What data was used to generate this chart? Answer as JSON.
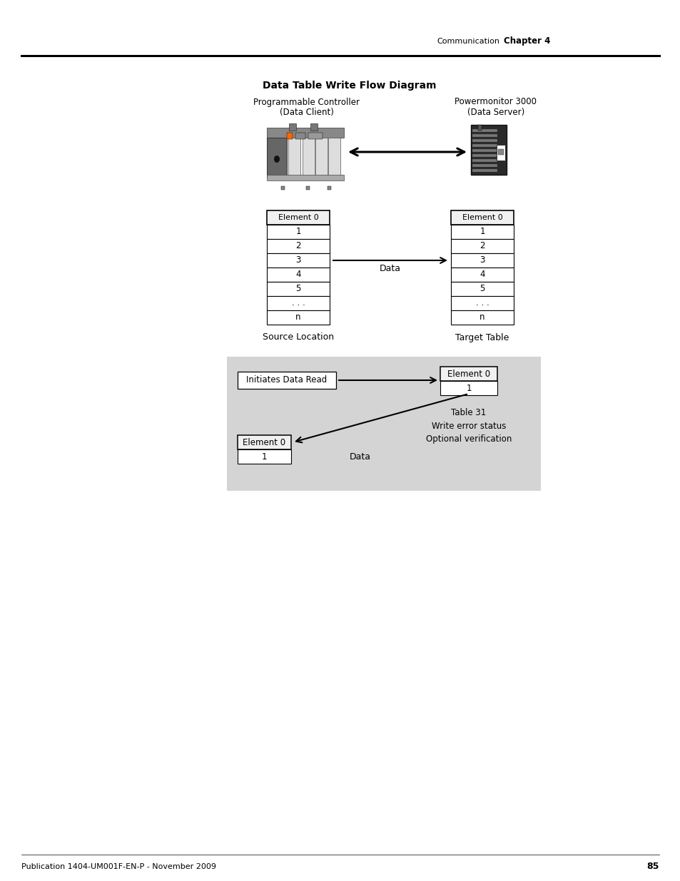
{
  "title": "Data Table Write Flow Diagram",
  "header_right_text": "Communication",
  "header_chapter": "Chapter 4",
  "footer_text": "Publication 1404-UM001F-EN-P - November 2009",
  "footer_page": "85",
  "left_label": "Programmable Controller\n(Data Client)",
  "right_label": "Powermonitor 3000\n(Data Server)",
  "table_rows": [
    "Element 0",
    "1",
    "2",
    "3",
    "4",
    "5",
    ". . .",
    "n"
  ],
  "source_label": "Source Location",
  "target_label": "Target Table",
  "data_arrow_label": "Data",
  "gray_bg_color": "#d4d4d4",
  "bottom_box1_title": "Initiates Data Read",
  "bottom_box2_title": "Element 0",
  "bottom_box2_row": "1",
  "bottom_box3_title": "Element 0",
  "bottom_box3_row": "1",
  "bottom_label1": "Table 31\nWrite error status",
  "bottom_label2": "Optional verification",
  "bottom_data_label": "Data"
}
